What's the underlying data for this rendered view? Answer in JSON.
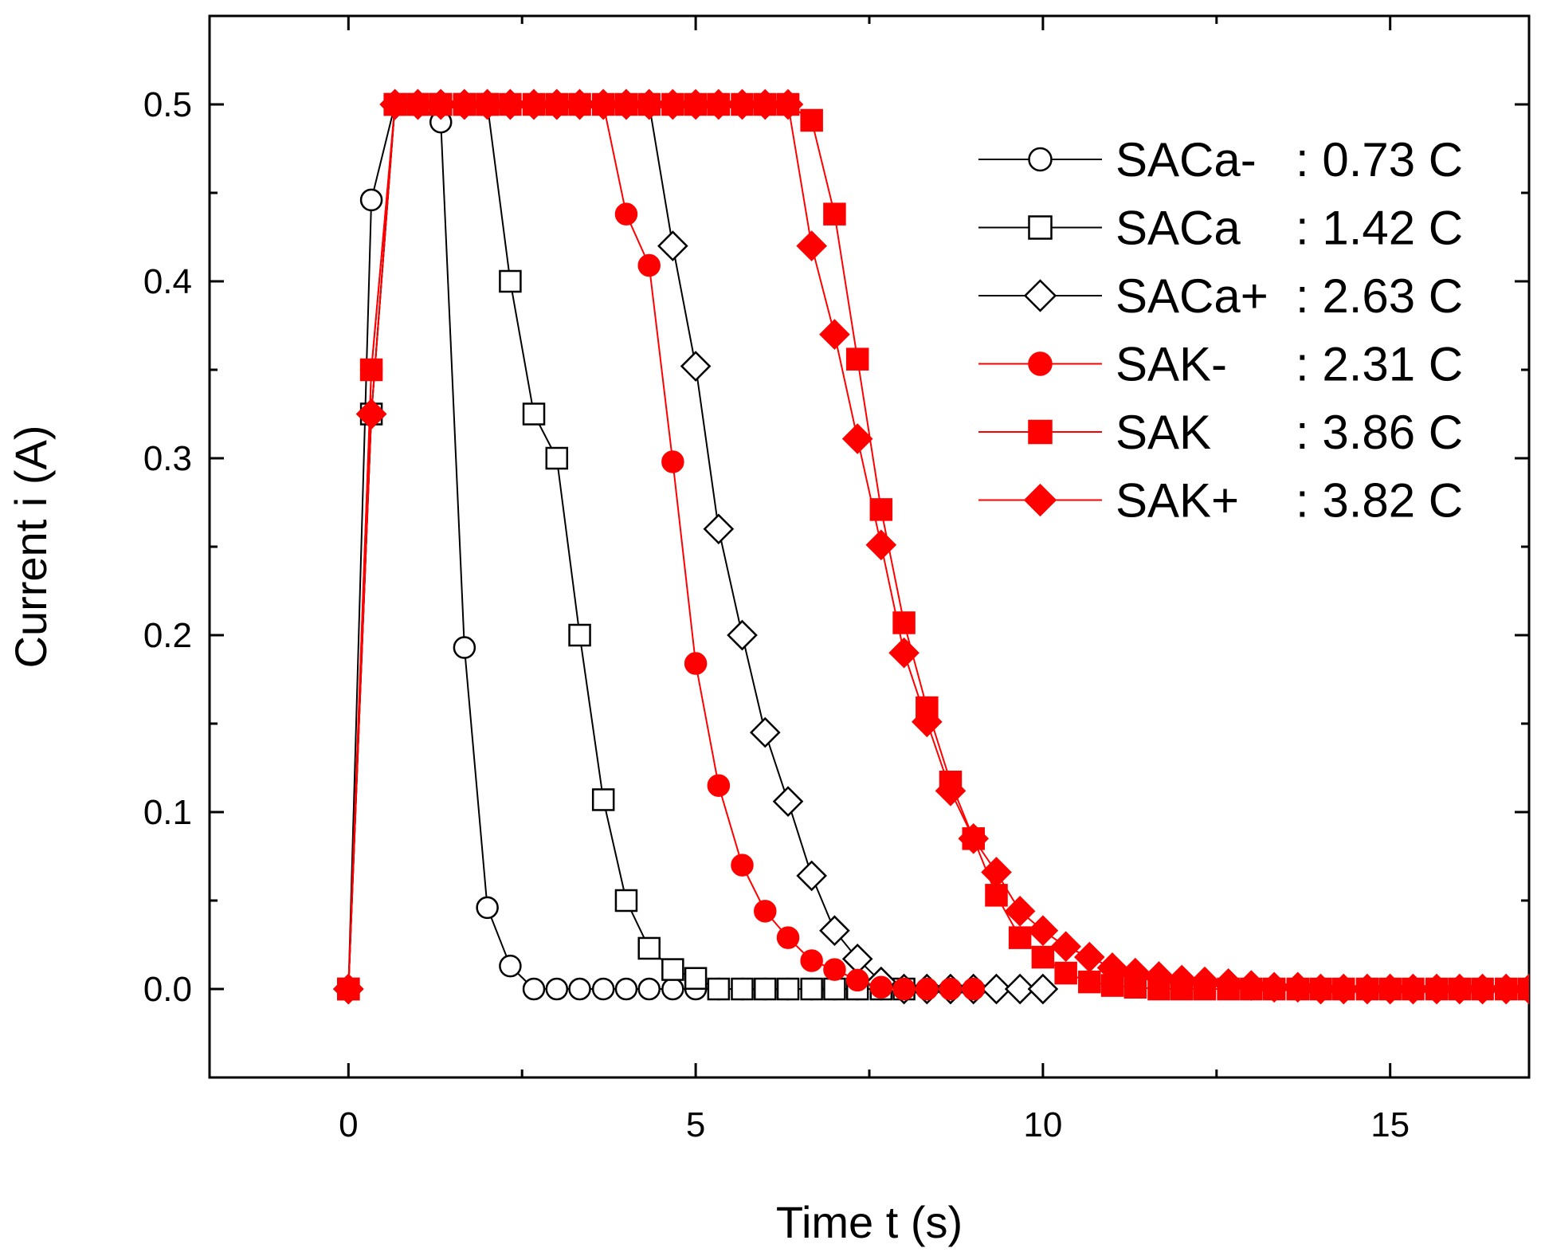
{
  "chart_data": {
    "type": "line",
    "title": "",
    "xlabel": "Time t (s)",
    "ylabel": "Current i (A)",
    "xlim": [
      -2,
      17
    ],
    "ylim": [
      -0.05,
      0.55
    ],
    "xticks": [
      0,
      5,
      10,
      15
    ],
    "yticks": [
      0.0,
      0.1,
      0.2,
      0.3,
      0.4,
      0.5
    ],
    "xtick_labels": [
      "0",
      "5",
      "10",
      "15"
    ],
    "ytick_labels": [
      "0.0",
      "0.1",
      "0.2",
      "0.3",
      "0.4",
      "0.5"
    ],
    "grid": false,
    "legend_position": "top-right",
    "series": [
      {
        "name": "SACa-",
        "legend_name": "SACa-",
        "legend_value": ": 0.73 C",
        "color": "#000000",
        "marker": "circle",
        "filled": false,
        "x": [
          0,
          0.33,
          0.67,
          1.0,
          1.33,
          1.67,
          2.0,
          2.33,
          2.67,
          3.0,
          3.33,
          3.67,
          4.0,
          4.33,
          4.67,
          5.0,
          5.33,
          5.67,
          6.0,
          6.33,
          6.67,
          7.0,
          7.33,
          7.67,
          8.0
        ],
        "y": [
          0,
          0.446,
          0.5,
          0.5,
          0.49,
          0.193,
          0.046,
          0.013,
          0,
          0,
          0,
          0,
          0,
          0,
          0,
          0,
          0,
          0,
          0,
          0,
          0,
          0,
          0,
          0,
          0
        ]
      },
      {
        "name": "SACa",
        "legend_name": "SACa",
        "legend_value": ": 1.42 C",
        "color": "#000000",
        "marker": "square",
        "filled": false,
        "x": [
          0,
          0.33,
          0.67,
          1.0,
          1.33,
          1.67,
          2.0,
          2.33,
          2.67,
          3.0,
          3.33,
          3.67,
          4.0,
          4.33,
          4.67,
          5.0,
          5.33,
          5.67,
          6.0,
          6.33,
          6.67,
          7.0,
          7.33,
          7.67,
          8.0
        ],
        "y": [
          0,
          0.325,
          0.5,
          0.5,
          0.5,
          0.5,
          0.5,
          0.4,
          0.325,
          0.3,
          0.2,
          0.107,
          0.05,
          0.023,
          0.011,
          0.006,
          0,
          0,
          0,
          0,
          0,
          0,
          0,
          0,
          0
        ]
      },
      {
        "name": "SACa+",
        "legend_name": "SACa+",
        "legend_value": ": 2.63 C",
        "color": "#000000",
        "marker": "diamond",
        "filled": false,
        "x": [
          0,
          0.33,
          0.67,
          1.0,
          1.33,
          1.67,
          2.0,
          2.33,
          2.67,
          3.0,
          3.33,
          3.67,
          4.0,
          4.33,
          4.67,
          5.0,
          5.33,
          5.67,
          6.0,
          6.33,
          6.67,
          7.0,
          7.33,
          7.67,
          8.0,
          8.33,
          8.67,
          9.0,
          9.33,
          9.67,
          10.0
        ],
        "y": [
          0,
          0.325,
          0.5,
          0.5,
          0.5,
          0.5,
          0.5,
          0.5,
          0.5,
          0.5,
          0.5,
          0.5,
          0.5,
          0.5,
          0.42,
          0.352,
          0.26,
          0.2,
          0.145,
          0.106,
          0.064,
          0.033,
          0.017,
          0.004,
          0,
          0,
          0,
          0,
          0,
          0,
          0
        ]
      },
      {
        "name": "SAK-",
        "legend_name": "SAK-",
        "legend_value": ": 2.31 C",
        "color": "#ff0000",
        "marker": "circle",
        "filled": true,
        "x": [
          0,
          0.33,
          0.67,
          1.0,
          1.33,
          1.67,
          2.0,
          2.33,
          2.67,
          3.0,
          3.33,
          3.67,
          4.0,
          4.33,
          4.67,
          5.0,
          5.33,
          5.67,
          6.0,
          6.33,
          6.67,
          7.0,
          7.33,
          7.67,
          8.0,
          8.33,
          8.67,
          9.0
        ],
        "y": [
          0,
          0.35,
          0.5,
          0.5,
          0.5,
          0.5,
          0.5,
          0.5,
          0.5,
          0.5,
          0.5,
          0.5,
          0.438,
          0.409,
          0.298,
          0.184,
          0.115,
          0.07,
          0.044,
          0.029,
          0.016,
          0.011,
          0.005,
          0.001,
          0,
          0,
          0,
          0
        ]
      },
      {
        "name": "SAK",
        "legend_name": "SAK",
        "legend_value": ": 3.86 C",
        "color": "#ff0000",
        "marker": "square",
        "filled": true,
        "x": [
          0,
          0.33,
          0.67,
          1.0,
          1.33,
          1.67,
          2.0,
          2.33,
          2.67,
          3.0,
          3.33,
          3.67,
          4.0,
          4.33,
          4.67,
          5.0,
          5.33,
          5.67,
          6.0,
          6.33,
          6.67,
          7.0,
          7.33,
          7.67,
          8.0,
          8.33,
          8.67,
          9.0,
          9.33,
          9.67,
          10.0,
          10.33,
          10.67,
          11.0,
          11.33,
          11.67,
          12.0,
          12.33,
          12.67,
          13.0,
          13.33,
          13.67,
          14.0,
          14.33,
          14.67,
          15.0,
          15.33,
          15.67,
          16.0,
          16.33,
          16.67,
          17.0
        ],
        "y": [
          0,
          0.35,
          0.5,
          0.5,
          0.5,
          0.5,
          0.5,
          0.5,
          0.5,
          0.5,
          0.5,
          0.5,
          0.5,
          0.5,
          0.5,
          0.5,
          0.5,
          0.5,
          0.5,
          0.5,
          0.491,
          0.438,
          0.356,
          0.271,
          0.207,
          0.159,
          0.117,
          0.085,
          0.053,
          0.029,
          0.018,
          0.009,
          0.004,
          0.002,
          0.001,
          0,
          0,
          0,
          0,
          0,
          0,
          0,
          0,
          0,
          0,
          0,
          0,
          0,
          0,
          0,
          0,
          0
        ]
      },
      {
        "name": "SAK+",
        "legend_name": "SAK+",
        "legend_value": ": 3.82 C",
        "color": "#ff0000",
        "marker": "diamond",
        "filled": true,
        "x": [
          0,
          0.33,
          0.67,
          1.0,
          1.33,
          1.67,
          2.0,
          2.33,
          2.67,
          3.0,
          3.33,
          3.67,
          4.0,
          4.33,
          4.67,
          5.0,
          5.33,
          5.67,
          6.0,
          6.33,
          6.67,
          7.0,
          7.33,
          7.67,
          8.0,
          8.33,
          8.67,
          9.0,
          9.33,
          9.67,
          10.0,
          10.33,
          10.67,
          11.0,
          11.33,
          11.67,
          12.0,
          12.33,
          12.67,
          13.0,
          13.33,
          13.67,
          14.0,
          14.33,
          14.67,
          15.0,
          15.33,
          15.67,
          16.0,
          16.33,
          16.67,
          17.0
        ],
        "y": [
          0,
          0.325,
          0.5,
          0.5,
          0.5,
          0.5,
          0.5,
          0.5,
          0.5,
          0.5,
          0.5,
          0.5,
          0.5,
          0.5,
          0.5,
          0.5,
          0.5,
          0.5,
          0.5,
          0.5,
          0.42,
          0.37,
          0.311,
          0.251,
          0.19,
          0.151,
          0.112,
          0.085,
          0.066,
          0.044,
          0.033,
          0.024,
          0.018,
          0.012,
          0.009,
          0.007,
          0.005,
          0.004,
          0.003,
          0.002,
          0.001,
          0.001,
          0,
          0,
          0,
          0,
          0,
          0,
          0,
          0,
          0,
          0
        ]
      }
    ]
  }
}
